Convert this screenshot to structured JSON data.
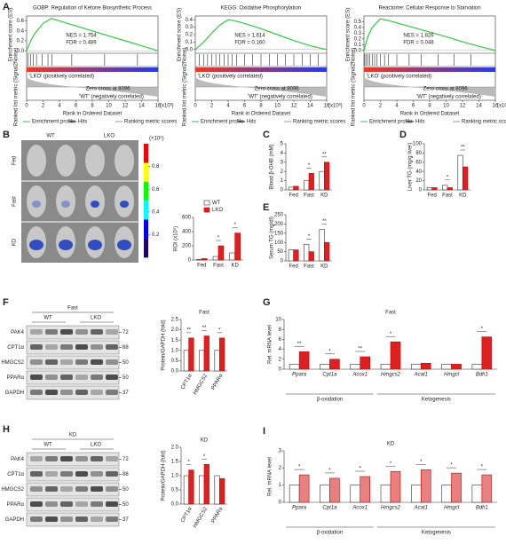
{
  "panels": {
    "A": {
      "label": "A",
      "y_label": "Enrichment score (ES)",
      "metric_label": "Ranked list metric (Signal2Noise)",
      "pos": "'LKO' (positively correlated)",
      "neg": "'WT' (negatively correlated)",
      "zero": "Zero cross at 8096",
      "x_label": "Rank in Ordered Dataset",
      "x_unit": "(x10³)",
      "xlim": [
        0,
        16
      ],
      "xticks": [
        0,
        2,
        4,
        6,
        8,
        10,
        12,
        14,
        16
      ],
      "legend": [
        "Enrichment profile",
        "Hits",
        "Ranking metric scores"
      ],
      "plots": [
        {
          "title": "GOBP: Regulation of Ketone Biosynthetic Process",
          "nes": "NES = 1.754",
          "fdr": "FDR = 0.489",
          "ylim": [
            -0.05,
            0.7
          ],
          "yticks": [
            {
              "value": 0,
              "label": "0.0"
            },
            0.2,
            0.4,
            0.6
          ],
          "x": [
            0,
            0.5,
            1,
            2,
            3,
            4,
            6,
            8,
            10,
            12,
            14,
            16
          ],
          "es": [
            0,
            0.2,
            0.35,
            0.55,
            0.65,
            0.6,
            0.5,
            0.4,
            0.3,
            0.2,
            0.1,
            0
          ],
          "hits": [
            0.2,
            0.5,
            0.8,
            1.2,
            1.9,
            2.6,
            3.1,
            5.5,
            9.5,
            13.5
          ]
        },
        {
          "title": "KEGG: Oxidative Phosphorylation",
          "nes": "NES = 1.614",
          "fdr": "FDR = 0.160",
          "ylim": [
            -0.05,
            0.45
          ],
          "yticks": [
            {
              "value": 0,
              "label": "0.0"
            },
            0.1,
            0.2,
            0.3,
            0.4
          ],
          "x": [
            0,
            1,
            2,
            3,
            4,
            5,
            6,
            8,
            10,
            12,
            14,
            16
          ],
          "es": [
            0,
            0.1,
            0.22,
            0.33,
            0.4,
            0.38,
            0.35,
            0.28,
            0.2,
            0.12,
            0.05,
            0
          ],
          "hits": [
            0.5,
            1,
            1.5,
            2,
            2.5,
            3,
            3.5,
            4,
            4.5,
            5,
            6,
            7,
            8,
            9,
            10,
            11,
            12,
            13,
            14,
            15
          ]
        },
        {
          "title": "Reactome: Cellular Response to Starvation",
          "nes": "NES = 1.826",
          "fdr": "FDR = 0.048",
          "ylim": [
            -0.05,
            0.6
          ],
          "yticks": [
            {
              "value": 0,
              "label": "0.0"
            },
            0.1,
            0.2,
            0.3,
            0.4,
            0.5
          ],
          "x": [
            0,
            0.5,
            1,
            2,
            3,
            4,
            6,
            8,
            10,
            12,
            14,
            16
          ],
          "es": [
            0,
            0.25,
            0.4,
            0.55,
            0.52,
            0.48,
            0.4,
            0.32,
            0.24,
            0.15,
            0.07,
            0
          ],
          "hits": [
            0.1,
            0.3,
            0.5,
            0.7,
            1,
            1.3,
            1.6,
            2,
            2.5,
            3,
            4,
            5.5,
            7,
            9,
            11,
            13
          ]
        }
      ]
    },
    "B": {
      "label": "B",
      "columns": [
        "WT",
        "LKO"
      ],
      "rows": [
        "Fed",
        "Fast",
        "KD"
      ],
      "colorbar_unit": "(×10⁵)",
      "colorbar_ticks": [
        0.8,
        0.6,
        0.4,
        0.2
      ],
      "bar": {
        "y_label": "ROI (x10⁵)",
        "ylim": [
          0,
          600
        ],
        "yticks": [
          0,
          200,
          400,
          600
        ],
        "categories": [
          "Fed",
          "Fast",
          "KD"
        ],
        "series": [
          {
            "name": "WT",
            "color": "#ffffff",
            "values": [
              10,
              50,
              100
            ]
          },
          {
            "name": "LKO",
            "color": "#e02020",
            "values": [
              20,
              200,
              380
            ]
          }
        ],
        "stars": [
          null,
          "*",
          "*"
        ]
      }
    },
    "C": {
      "label": "C",
      "bar": {
        "y_label": "Blood β-OHB (mM)",
        "ylim": [
          0,
          5
        ],
        "yticks": [
          0,
          1,
          2,
          3,
          4,
          5
        ],
        "categories": [
          "Fed",
          "Fast",
          "KD"
        ],
        "series": [
          {
            "color": "#ffffff",
            "values": [
              0.3,
              1.0,
              2.0
            ]
          },
          {
            "color": "#e02020",
            "values": [
              0.4,
              1.8,
              3.0
            ]
          }
        ],
        "stars": [
          null,
          "*",
          "**"
        ]
      }
    },
    "D": {
      "label": "D",
      "bar": {
        "y_label": "Liver TG (mg/g liver)",
        "ylim": [
          0,
          100
        ],
        "yticks": [
          0,
          20,
          40,
          60,
          80,
          100
        ],
        "categories": [
          "Fed",
          "Fast",
          "KD"
        ],
        "series": [
          {
            "color": "#ffffff",
            "values": [
              5,
              10,
              75
            ]
          },
          {
            "color": "#e02020",
            "values": [
              5,
              5,
              50
            ]
          }
        ],
        "stars": [
          null,
          "*",
          "**"
        ]
      }
    },
    "E": {
      "label": "E",
      "bar": {
        "y_label": "Serum TG (mg/dl)",
        "ylim": [
          0,
          250
        ],
        "yticks": [
          0,
          50,
          100,
          150,
          200,
          250
        ],
        "categories": [
          "Fed",
          "Fast",
          "KD"
        ],
        "series": [
          {
            "color": "#ffffff",
            "values": [
              60,
              90,
              170
            ]
          },
          {
            "color": "#e02020",
            "values": [
              60,
              50,
              100
            ]
          }
        ],
        "stars": [
          null,
          "*",
          "**"
        ]
      }
    },
    "F": {
      "label": "F",
      "condition": "Fast",
      "columns": [
        "WT",
        "LKO"
      ],
      "blot": [
        {
          "protein": "PAK4",
          "kda": 72
        },
        {
          "protein": "CPT1α",
          "kda": 88
        },
        {
          "protein": "HMGCS2",
          "kda": 50
        },
        {
          "protein": "PPARα",
          "kda": 50
        },
        {
          "protein": "GAPDH",
          "kda": 37
        }
      ],
      "bar": {
        "title": "Fast",
        "y_label": "Protein/GAPDH (fold)",
        "ylim": [
          0,
          2.5
        ],
        "yticks": [
          {
            "value": 0,
            "label": "0.0"
          },
          0.5,
          {
            "value": 1,
            "label": "1.0"
          },
          1.5,
          {
            "value": 2,
            "label": "2.0"
          },
          2.5
        ],
        "categories": [
          "CPT1α",
          "HMGCS2",
          "PPARα"
        ],
        "series": [
          {
            "color": "#ffffff",
            "values": [
              1,
              1,
              1
            ]
          },
          {
            "color": "#e02020",
            "values": [
              1.6,
              1.7,
              1.6
            ]
          }
        ],
        "stars": [
          "**",
          "**",
          "*"
        ]
      }
    },
    "G": {
      "label": "G",
      "bar": {
        "title": "Fast",
        "y_label": "Rel. mRNA level",
        "ylim": [
          0,
          10
        ],
        "yticks": [
          0,
          2,
          4,
          6,
          8,
          10
        ],
        "categories": [
          "Ppara",
          "Cpt1a",
          "Acox1",
          "Hmgcs2",
          "Acat1",
          "Hmgcl",
          "Bdh1"
        ],
        "series": [
          {
            "color": "#ffffff",
            "values": [
              1,
              1,
              1,
              1,
              1,
              1,
              1
            ]
          },
          {
            "color": "#e02020",
            "values": [
              3.5,
              2.0,
              2.5,
              5.5,
              1.2,
              1.0,
              6.5
            ]
          }
        ],
        "stars": [
          "**",
          "*",
          "**",
          "*",
          null,
          null,
          "*"
        ],
        "groups": [
          "β-oxidation",
          "Ketogenesis"
        ]
      }
    },
    "H": {
      "label": "H",
      "condition": "KD",
      "columns": [
        "WT",
        "LKO"
      ],
      "blot": [
        {
          "protein": "PAK4",
          "kda": 72
        },
        {
          "protein": "CPT1α",
          "kda": 88
        },
        {
          "protein": "HMGCS2",
          "kda": 50
        },
        {
          "protein": "PPARα",
          "kda": 50
        },
        {
          "protein": "GAPDH",
          "kda": 37
        }
      ],
      "bar": {
        "title": "KD",
        "y_label": "Protein/GAPDH (fold)",
        "ylim": [
          0,
          2
        ],
        "yticks": [
          {
            "value": 0,
            "label": "0.0"
          },
          0.5,
          {
            "value": 1,
            "label": "1.0"
          },
          1.5,
          {
            "value": 2,
            "label": "2.0"
          }
        ],
        "categories": [
          "CPT1α",
          "HMGCS2",
          "PPARα"
        ],
        "series": [
          {
            "color": "#ffffff",
            "values": [
              1,
              1,
              1
            ]
          },
          {
            "color": "#e02020",
            "values": [
              1.2,
              1.4,
              0.9
            ]
          }
        ],
        "stars": [
          "*",
          "*",
          null
        ]
      }
    },
    "I": {
      "label": "I",
      "bar": {
        "title": "KD",
        "y_label": "Rel. mRNA level",
        "ylim": [
          0,
          3
        ],
        "yticks": [
          0,
          1,
          2,
          3
        ],
        "categories": [
          "Ppara",
          "Cpt1a",
          "Acox1",
          "Hmgcs2",
          "Acat1",
          "Hmgcl",
          "Bdh1"
        ],
        "series": [
          {
            "color": "#ffffff",
            "values": [
              1,
              1,
              1,
              1,
              1,
              1,
              1
            ]
          },
          {
            "color": "#e88080",
            "values": [
              1.6,
              1.4,
              1.5,
              1.8,
              1.9,
              1.7,
              1.6
            ]
          }
        ],
        "stars": [
          "*",
          "*",
          "*",
          "*",
          "*",
          "*",
          "*"
        ],
        "groups": [
          "β-oxidation",
          "Ketogenesis"
        ]
      }
    }
  }
}
